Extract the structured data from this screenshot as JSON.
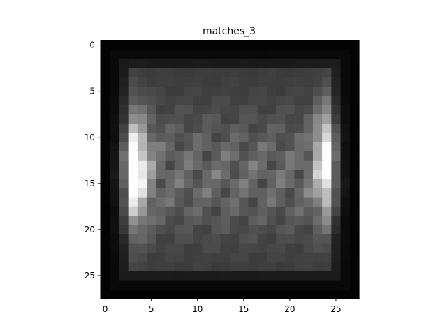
{
  "chart_data": {
    "type": "heatmap",
    "title": "matches_3",
    "xlabel": "",
    "ylabel": "",
    "colormap": "gray",
    "shape": [
      28,
      28
    ],
    "xlim": [
      -0.5,
      27.5
    ],
    "ylim": [
      27.5,
      -0.5
    ],
    "xticks": [
      0,
      5,
      10,
      15,
      20,
      25
    ],
    "yticks": [
      0,
      5,
      10,
      15,
      20,
      25
    ],
    "grid": false,
    "value_range": [
      0,
      1
    ],
    "values_description_note": ""
  }
}
